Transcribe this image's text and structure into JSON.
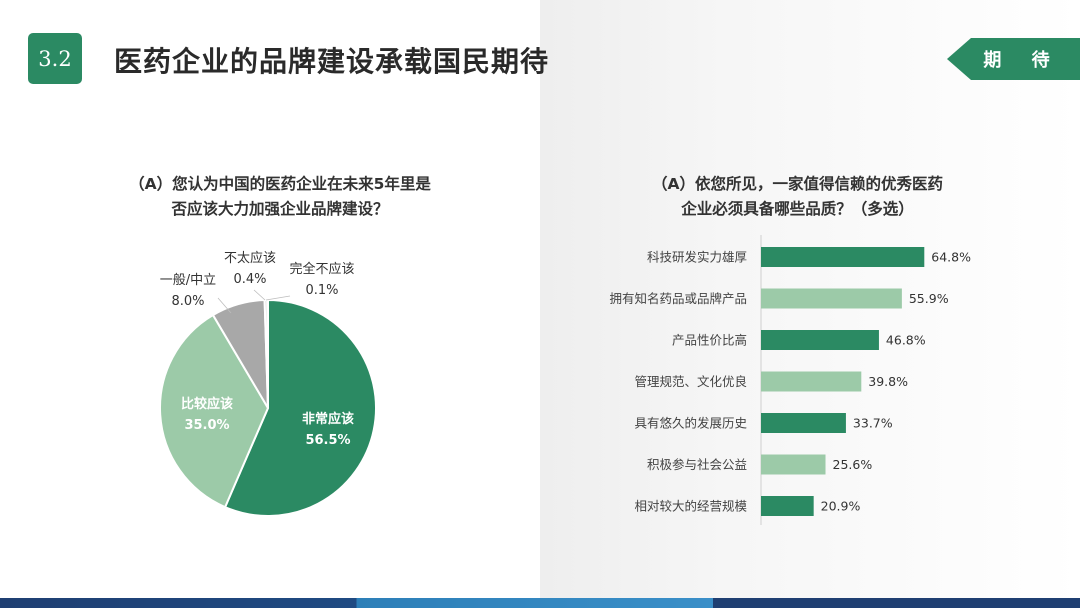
{
  "header": {
    "section_number": "3.2",
    "title": "医药企业的品牌建设承载国民期待",
    "tag": "期 待"
  },
  "chart_data": [
    {
      "type": "pie",
      "title_lines": [
        "（A）您认为中国的医药企业在未来5年里是",
        "否应该大力加强企业品牌建设？"
      ],
      "slices": [
        {
          "name": "非常应该",
          "value": 56.5,
          "label": "56.5%",
          "color": "#2b8a63"
        },
        {
          "name": "比较应该",
          "value": 35.0,
          "label": "35.0%",
          "color": "#9ccaa8"
        },
        {
          "name": "一般/中立",
          "value": 8.0,
          "label": "8.0%",
          "color": "#a8a8a8"
        },
        {
          "name": "不太应该",
          "value": 0.4,
          "label": "0.4%",
          "color": "#d0d0d0"
        },
        {
          "name": "完全不应该",
          "value": 0.1,
          "label": "0.1%",
          "color": "#bbbbbb"
        }
      ]
    },
    {
      "type": "bar",
      "orientation": "horizontal",
      "title_lines": [
        "（A）依您所见，一家值得信赖的优秀医药",
        "企业必须具备哪些品质？（多选）"
      ],
      "categories": [
        "科技研发实力雄厚",
        "拥有知名药品或品牌产品",
        "产品性价比高",
        "管理规范、文化优良",
        "具有悠久的发展历史",
        "积极参与社会公益",
        "相对较大的经营规模"
      ],
      "values": [
        64.8,
        55.9,
        46.8,
        39.8,
        33.7,
        25.6,
        20.9
      ],
      "labels": [
        "64.8%",
        "55.9%",
        "46.8%",
        "39.8%",
        "33.7%",
        "25.6%",
        "20.9%"
      ],
      "colors": [
        "#2b8a63",
        "#9ccaa8",
        "#2b8a63",
        "#9ccaa8",
        "#2b8a63",
        "#9ccaa8",
        "#2b8a63"
      ],
      "xlim": [
        0,
        100
      ],
      "grid": false
    }
  ]
}
